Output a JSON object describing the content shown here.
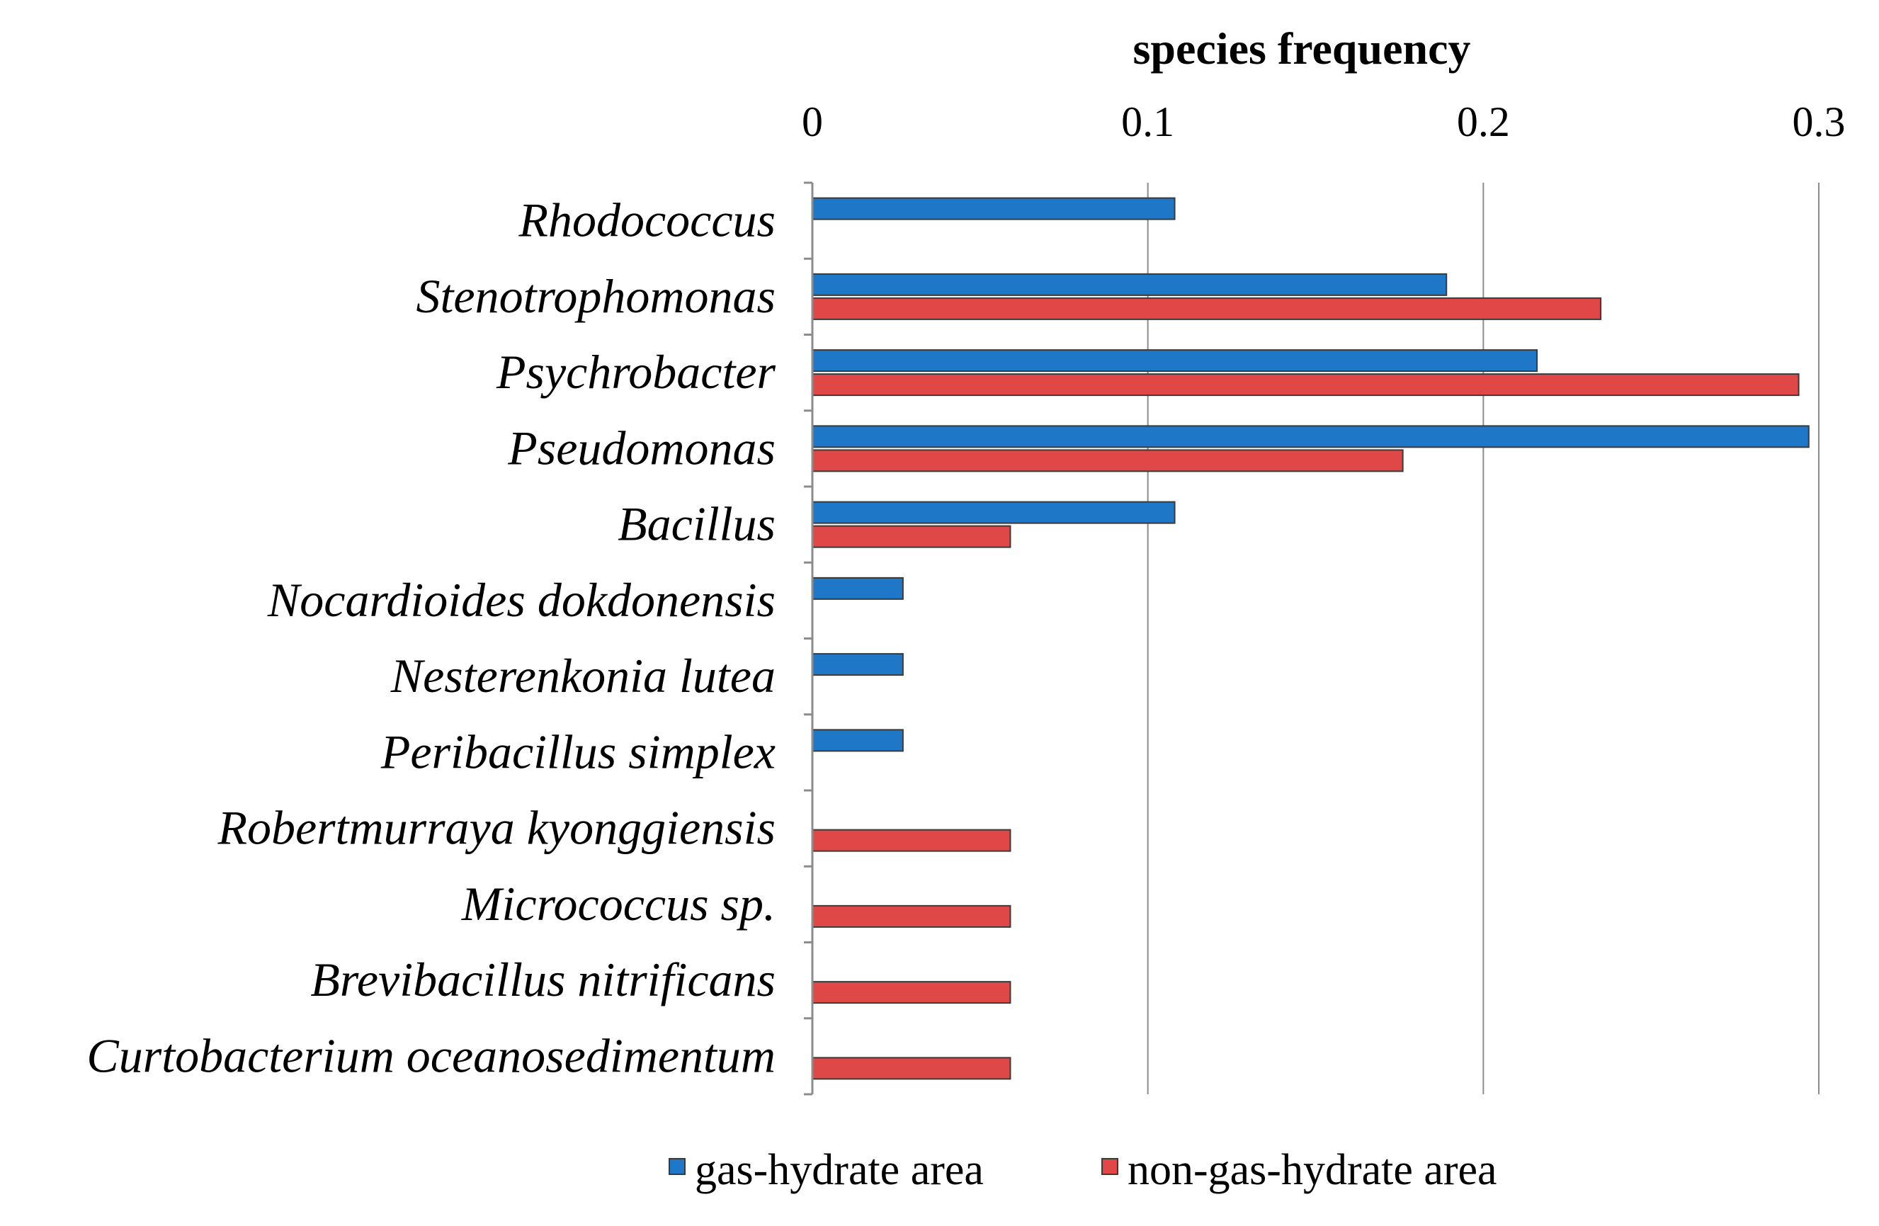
{
  "chart_data": {
    "type": "bar",
    "orientation": "horizontal",
    "title": "species frequency",
    "xlabel": "species frequency",
    "ylabel": "",
    "xlim": [
      0,
      0.3
    ],
    "x_ticks": [
      0,
      0.1,
      0.2,
      0.3
    ],
    "x_tick_labels": [
      "0",
      "0.1",
      "0.2",
      "0.3"
    ],
    "x_axis_position": "top",
    "grid": true,
    "legend_position": "bottom-center",
    "categories": [
      "Rhodococcus",
      "Stenotrophomonas",
      "Psychrobacter",
      "Pseudomonas",
      "Bacillus",
      "Nocardioides dokdonensis",
      "Nesterenkonia lutea",
      "Peribacillus simplex",
      "Robertmurraya kyonggiensis",
      "Micrococcus sp.",
      "Brevibacillus nitrificans",
      "Curtobacterium oceanosedimentum"
    ],
    "series": [
      {
        "name": "gas-hydrate area",
        "color": "#1F77C8",
        "values": [
          0.108,
          0.189,
          0.216,
          0.297,
          0.108,
          0.027,
          0.027,
          0.027,
          0,
          0,
          0,
          0
        ]
      },
      {
        "name": "non-gas-hydrate area",
        "color": "#E04848",
        "values": [
          0,
          0.235,
          0.294,
          0.176,
          0.059,
          0,
          0,
          0,
          0.059,
          0.059,
          0.059,
          0.059
        ]
      }
    ]
  }
}
